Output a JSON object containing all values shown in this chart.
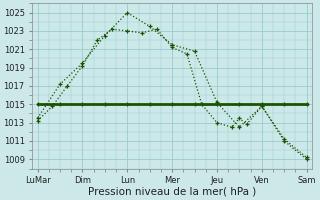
{
  "background_color": "#cce8e8",
  "grid_color": "#99cccc",
  "line_color": "#1a5200",
  "xlabel": "Pression niveau de la mer( hPa )",
  "x_labels": [
    "LuMar",
    "Dim",
    "Lun",
    "Mer",
    "Jeu",
    "Ven",
    "Sam"
  ],
  "x_positions": [
    0,
    1,
    2,
    3,
    4,
    5,
    6
  ],
  "ylim": [
    1008.0,
    1026.0
  ],
  "yticks": [
    1009,
    1011,
    1013,
    1015,
    1017,
    1019,
    1021,
    1023,
    1025
  ],
  "xlabel_fontsize": 7.5,
  "tick_fontsize": 6.0,
  "line_dotted1_x": [
    0.0,
    0.33,
    0.66,
    1.0,
    1.33,
    1.66,
    2.0,
    2.33,
    2.66,
    3.0,
    3.33,
    3.66,
    4.0,
    4.33,
    4.5,
    4.66,
    5.0,
    5.5,
    6.0
  ],
  "line_dotted1_y": [
    1013.2,
    1014.8,
    1017.0,
    1019.2,
    1022.0,
    1023.2,
    1023.0,
    1022.8,
    1023.2,
    1021.2,
    1020.5,
    1015.0,
    1013.0,
    1012.5,
    1013.5,
    1012.8,
    1014.8,
    1011.0,
    1009.0
  ],
  "line_dotted2_x": [
    0.0,
    0.5,
    1.0,
    1.5,
    2.0,
    2.5,
    3.0,
    3.5,
    4.0,
    4.5,
    5.0,
    5.5,
    6.0
  ],
  "line_dotted2_y": [
    1013.5,
    1017.2,
    1019.5,
    1022.5,
    1025.0,
    1023.5,
    1021.5,
    1020.8,
    1015.2,
    1012.5,
    1014.8,
    1011.2,
    1009.2
  ],
  "line_flat_x": [
    0.0,
    0.5,
    1.0,
    1.5,
    2.0,
    2.5,
    3.0,
    3.5,
    4.0,
    4.5,
    5.0,
    5.5,
    6.0
  ],
  "line_flat_y": [
    1015.0,
    1015.0,
    1015.0,
    1015.0,
    1015.0,
    1015.0,
    1015.0,
    1015.0,
    1015.0,
    1015.0,
    1015.0,
    1015.0,
    1015.0
  ]
}
